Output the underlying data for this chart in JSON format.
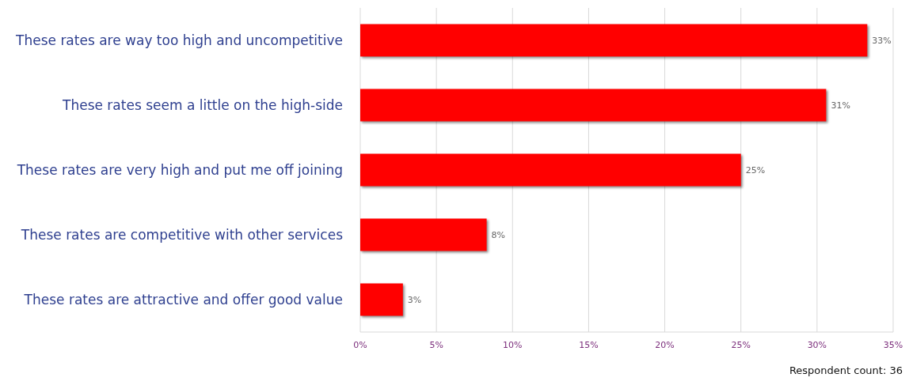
{
  "chart_data": {
    "type": "bar",
    "orientation": "horizontal",
    "categories": [
      "These rates are way too high and uncompetitive",
      "These rates seem a little on the high-side",
      "These rates are very high and put me off joining",
      "These rates are competitive with other services",
      "These rates are attractive and offer good value"
    ],
    "values": [
      33.3,
      30.6,
      25,
      8.3,
      2.8
    ],
    "value_labels": [
      "33%",
      "31%",
      "25%",
      "8%",
      "3%"
    ],
    "color": "#ff0000",
    "xlim": [
      0,
      35
    ],
    "xticks": [
      {
        "value": 0,
        "label": "0%"
      },
      {
        "value": 5,
        "label": "5%"
      },
      {
        "value": 10,
        "label": "10%"
      },
      {
        "value": 15,
        "label": "15%"
      },
      {
        "value": 20,
        "label": "20%"
      },
      {
        "value": 25,
        "label": "25%"
      },
      {
        "value": 30,
        "label": "30%"
      },
      {
        "value": 35,
        "label": "35%"
      }
    ],
    "grid": "x",
    "annotations": [
      "Respondent count: 36"
    ]
  }
}
